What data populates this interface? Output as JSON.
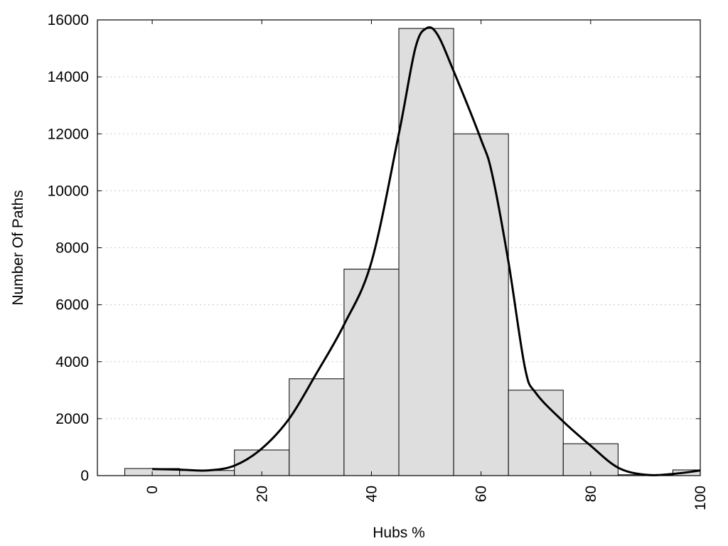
{
  "chart_data": {
    "type": "bar",
    "xlabel": "Hubs %",
    "ylabel": "Number Of Paths",
    "xlim": [
      -10,
      100
    ],
    "ylim": [
      0,
      16000
    ],
    "grid": true,
    "x_ticks": [
      0,
      20,
      40,
      60,
      80,
      100
    ],
    "y_ticks": [
      0,
      2000,
      4000,
      6000,
      8000,
      10000,
      12000,
      14000,
      16000
    ],
    "bin_width": 10,
    "x": [
      0,
      10,
      20,
      30,
      40,
      50,
      60,
      70,
      80,
      90,
      100
    ],
    "values": [
      250,
      180,
      900,
      3400,
      7250,
      15700,
      12000,
      3000,
      1120,
      30,
      200
    ],
    "bar_color": "#dedede",
    "curve": {
      "x": [
        0,
        5,
        10,
        15,
        20,
        25,
        30,
        35,
        40,
        45,
        48,
        50,
        52,
        55,
        60,
        62,
        65,
        68,
        70,
        75,
        80,
        85,
        90,
        95,
        100
      ],
      "y": [
        230,
        210,
        180,
        350,
        950,
        2000,
        3600,
        5300,
        7500,
        12000,
        15000,
        15700,
        15500,
        14200,
        11800,
        10600,
        7500,
        3800,
        2900,
        1900,
        1050,
        280,
        30,
        60,
        180
      ]
    }
  }
}
